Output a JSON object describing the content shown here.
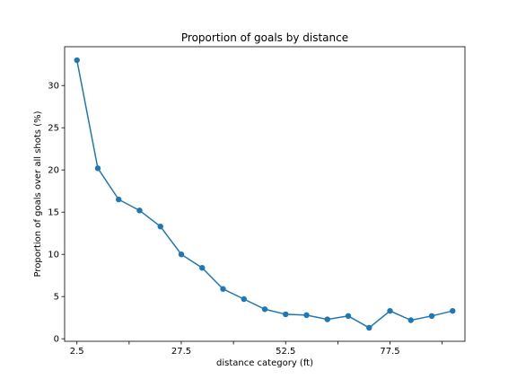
{
  "chart_data": {
    "type": "line",
    "title": "Proportion of goals by distance",
    "xlabel": "distance category (ft)",
    "ylabel": "Proportion of goals over all shots (%)",
    "x": [
      2.5,
      7.5,
      12.5,
      17.5,
      22.5,
      27.5,
      32.5,
      37.5,
      42.5,
      47.5,
      52.5,
      57.5,
      62.5,
      67.5,
      72.5,
      77.5,
      82.5,
      87.5,
      92.5
    ],
    "series": [
      {
        "values": [
          33.0,
          20.2,
          16.5,
          15.2,
          13.3,
          10.0,
          8.4,
          5.9,
          4.7,
          3.5,
          2.9,
          2.8,
          2.3,
          2.7,
          1.3,
          3.3,
          2.2,
          2.7,
          3.3
        ],
        "color": "#1f77b4"
      }
    ],
    "xlim": [
      -0.45,
      95.45
    ],
    "ylim": [
      -0.3,
      34.6
    ],
    "x_ticks": [
      2.5,
      15,
      27.5,
      40,
      52.5,
      65,
      77.5,
      90
    ],
    "x_tick_labels": [
      "2.5",
      "",
      "27.5",
      "",
      "52.5",
      "",
      "77.5",
      ""
    ],
    "y_ticks": [
      0,
      5,
      10,
      15,
      20,
      25,
      30
    ],
    "y_tick_labels": [
      "0",
      "5",
      "10",
      "15",
      "20",
      "25",
      "30"
    ],
    "grid": false,
    "legend": "none"
  }
}
